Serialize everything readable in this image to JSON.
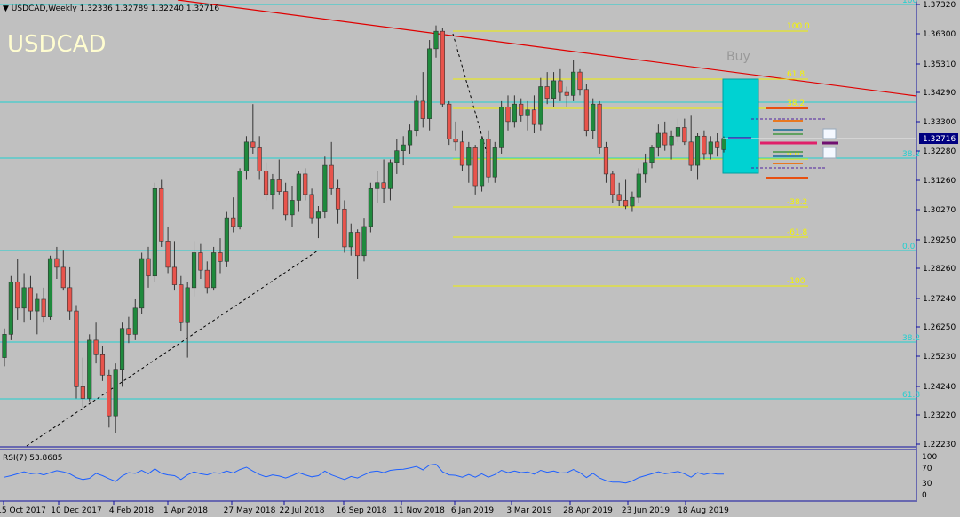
{
  "header": {
    "symbol_text": "USDCAD,Weekly",
    "ohlc_text": "1.32336 1.32789 1.32240 1.32716",
    "big_label": "USDCAD"
  },
  "colors": {
    "background": "#c0c0c0",
    "bull": "#1f8a3d",
    "bear": "#e8544c",
    "trendline": "#e00000",
    "support": "#20d0d0",
    "fib": "#f0f000",
    "fib_text": "#f4f400",
    "buy_box": "#00d2d2",
    "rsi_line": "#1e60ff",
    "axis": "#1010a0"
  },
  "annotations": {
    "buy_label": "Buy",
    "fib_labels": [
      "100.0",
      "61.8",
      "38.2",
      "0.0",
      "-38.2",
      "-61.8",
      "-100"
    ],
    "cyan_labels": [
      "100",
      "38.2",
      "0.0",
      "38.2",
      "61.8"
    ]
  },
  "rsi": {
    "label": "RSI(7) 53.8685",
    "levels": [
      "100",
      "70",
      "30",
      "0"
    ]
  },
  "chart_data": {
    "type": "candlestick",
    "title": "USDCAD,Weekly",
    "timeframe": "Weekly",
    "current_price": "1.32716",
    "y_ticks": [
      "1.37320",
      "1.36300",
      "1.35310",
      "1.34290",
      "1.33300",
      "1.32280",
      "1.31260",
      "1.30270",
      "1.29250",
      "1.28260",
      "1.27240",
      "1.26250",
      "1.25230",
      "1.24240",
      "1.23220",
      "1.22230"
    ],
    "x_ticks": [
      "15 Oct 2017",
      "10 Dec 2017",
      "4 Feb 2018",
      "1 Apr 2018",
      "27 May 2018",
      "22 Jul 2018",
      "16 Sep 2018",
      "11 Nov 2018",
      "6 Jan 2019",
      "3 Mar 2019",
      "28 Apr 2019",
      "23 Jun 2019",
      "18 Aug 2019"
    ],
    "ylim": [
      1.2223,
      1.3732
    ],
    "candles": [
      [
        1.252,
        1.262,
        1.249,
        1.26
      ],
      [
        1.26,
        1.28,
        1.258,
        1.278
      ],
      [
        1.278,
        1.286,
        1.265,
        1.269
      ],
      [
        1.269,
        1.281,
        1.264,
        1.276
      ],
      [
        1.276,
        1.28,
        1.265,
        1.268
      ],
      [
        1.268,
        1.274,
        1.26,
        1.272
      ],
      [
        1.272,
        1.276,
        1.264,
        1.266
      ],
      [
        1.266,
        1.287,
        1.265,
        1.286
      ],
      [
        1.286,
        1.29,
        1.279,
        1.283
      ],
      [
        1.283,
        1.289,
        1.275,
        1.276
      ],
      [
        1.276,
        1.283,
        1.265,
        1.268
      ],
      [
        1.268,
        1.27,
        1.238,
        1.242
      ],
      [
        1.242,
        1.252,
        1.235,
        1.238
      ],
      [
        1.238,
        1.26,
        1.237,
        1.258
      ],
      [
        1.258,
        1.264,
        1.25,
        1.253
      ],
      [
        1.253,
        1.256,
        1.244,
        1.246
      ],
      [
        1.246,
        1.248,
        1.228,
        1.232
      ],
      [
        1.232,
        1.25,
        1.226,
        1.248
      ],
      [
        1.248,
        1.264,
        1.242,
        1.262
      ],
      [
        1.262,
        1.266,
        1.257,
        1.26
      ],
      [
        1.26,
        1.272,
        1.258,
        1.269
      ],
      [
        1.269,
        1.288,
        1.267,
        1.286
      ],
      [
        1.286,
        1.29,
        1.276,
        1.28
      ],
      [
        1.28,
        1.312,
        1.278,
        1.31
      ],
      [
        1.31,
        1.313,
        1.29,
        1.292
      ],
      [
        1.292,
        1.297,
        1.281,
        1.283
      ],
      [
        1.283,
        1.292,
        1.275,
        1.277
      ],
      [
        1.277,
        1.28,
        1.261,
        1.264
      ],
      [
        1.264,
        1.278,
        1.252,
        1.276
      ],
      [
        1.276,
        1.292,
        1.273,
        1.288
      ],
      [
        1.288,
        1.291,
        1.279,
        1.282
      ],
      [
        1.282,
        1.285,
        1.274,
        1.276
      ],
      [
        1.276,
        1.29,
        1.275,
        1.288
      ],
      [
        1.288,
        1.293,
        1.281,
        1.285
      ],
      [
        1.285,
        1.302,
        1.283,
        1.3
      ],
      [
        1.3,
        1.307,
        1.295,
        1.297
      ],
      [
        1.297,
        1.317,
        1.296,
        1.316
      ],
      [
        1.316,
        1.328,
        1.313,
        1.326
      ],
      [
        1.326,
        1.339,
        1.322,
        1.324
      ],
      [
        1.324,
        1.328,
        1.313,
        1.316
      ],
      [
        1.316,
        1.319,
        1.306,
        1.308
      ],
      [
        1.308,
        1.315,
        1.303,
        1.313
      ],
      [
        1.313,
        1.32,
        1.308,
        1.309
      ],
      [
        1.309,
        1.312,
        1.299,
        1.301
      ],
      [
        1.301,
        1.311,
        1.297,
        1.306
      ],
      [
        1.306,
        1.316,
        1.302,
        1.315
      ],
      [
        1.315,
        1.317,
        1.306,
        1.308
      ],
      [
        1.308,
        1.31,
        1.298,
        1.3
      ],
      [
        1.3,
        1.304,
        1.293,
        1.302
      ],
      [
        1.302,
        1.321,
        1.3,
        1.318
      ],
      [
        1.318,
        1.326,
        1.308,
        1.31
      ],
      [
        1.31,
        1.313,
        1.298,
        1.303
      ],
      [
        1.303,
        1.306,
        1.288,
        1.29
      ],
      [
        1.29,
        1.298,
        1.287,
        1.295
      ],
      [
        1.295,
        1.296,
        1.279,
        1.287
      ],
      [
        1.287,
        1.3,
        1.285,
        1.297
      ],
      [
        1.297,
        1.312,
        1.295,
        1.31
      ],
      [
        1.31,
        1.316,
        1.305,
        1.312
      ],
      [
        1.312,
        1.32,
        1.305,
        1.31
      ],
      [
        1.31,
        1.32,
        1.306,
        1.319
      ],
      [
        1.319,
        1.327,
        1.315,
        1.323
      ],
      [
        1.323,
        1.328,
        1.318,
        1.325
      ],
      [
        1.325,
        1.332,
        1.322,
        1.33
      ],
      [
        1.33,
        1.342,
        1.328,
        1.34
      ],
      [
        1.34,
        1.35,
        1.331,
        1.334
      ],
      [
        1.334,
        1.361,
        1.33,
        1.358
      ],
      [
        1.358,
        1.366,
        1.355,
        1.364
      ],
      [
        1.364,
        1.365,
        1.338,
        1.339
      ],
      [
        1.339,
        1.34,
        1.325,
        1.327
      ],
      [
        1.327,
        1.333,
        1.323,
        1.326
      ],
      [
        1.326,
        1.33,
        1.316,
        1.318
      ],
      [
        1.318,
        1.326,
        1.312,
        1.324
      ],
      [
        1.324,
        1.325,
        1.308,
        1.311
      ],
      [
        1.311,
        1.328,
        1.309,
        1.327
      ],
      [
        1.327,
        1.33,
        1.312,
        1.314
      ],
      [
        1.314,
        1.326,
        1.312,
        1.324
      ],
      [
        1.324,
        1.34,
        1.322,
        1.338
      ],
      [
        1.338,
        1.342,
        1.33,
        1.333
      ],
      [
        1.333,
        1.342,
        1.331,
        1.339
      ],
      [
        1.339,
        1.341,
        1.333,
        1.335
      ],
      [
        1.335,
        1.34,
        1.33,
        1.337
      ],
      [
        1.337,
        1.342,
        1.329,
        1.332
      ],
      [
        1.332,
        1.348,
        1.33,
        1.345
      ],
      [
        1.345,
        1.35,
        1.339,
        1.341
      ],
      [
        1.341,
        1.35,
        1.338,
        1.347
      ],
      [
        1.347,
        1.351,
        1.34,
        1.343
      ],
      [
        1.343,
        1.345,
        1.338,
        1.342
      ],
      [
        1.342,
        1.354,
        1.34,
        1.35
      ],
      [
        1.35,
        1.351,
        1.342,
        1.344
      ],
      [
        1.344,
        1.346,
        1.328,
        1.33
      ],
      [
        1.33,
        1.341,
        1.327,
        1.339
      ],
      [
        1.339,
        1.34,
        1.322,
        1.324
      ],
      [
        1.324,
        1.326,
        1.312,
        1.315
      ],
      [
        1.315,
        1.316,
        1.305,
        1.308
      ],
      [
        1.308,
        1.312,
        1.304,
        1.306
      ],
      [
        1.306,
        1.313,
        1.303,
        1.304
      ],
      [
        1.304,
        1.309,
        1.302,
        1.307
      ],
      [
        1.307,
        1.317,
        1.305,
        1.315
      ],
      [
        1.315,
        1.322,
        1.312,
        1.319
      ],
      [
        1.319,
        1.325,
        1.317,
        1.324
      ],
      [
        1.324,
        1.332,
        1.321,
        1.329
      ],
      [
        1.329,
        1.333,
        1.323,
        1.325
      ],
      [
        1.325,
        1.33,
        1.32,
        1.328
      ],
      [
        1.328,
        1.334,
        1.326,
        1.331
      ],
      [
        1.331,
        1.334,
        1.325,
        1.326
      ],
      [
        1.326,
        1.335,
        1.316,
        1.318
      ],
      [
        1.318,
        1.329,
        1.313,
        1.328
      ],
      [
        1.328,
        1.33,
        1.32,
        1.322
      ],
      [
        1.322,
        1.328,
        1.32,
        1.326
      ],
      [
        1.326,
        1.329,
        1.321,
        1.324
      ],
      [
        1.3234,
        1.3279,
        1.3224,
        1.3272
      ]
    ],
    "rsi_values": [
      46,
      50,
      55,
      60,
      55,
      57,
      52,
      58,
      63,
      60,
      55,
      45,
      40,
      43,
      56,
      50,
      42,
      35,
      49,
      58,
      56,
      64,
      55,
      68,
      56,
      52,
      50,
      40,
      52,
      60,
      55,
      52,
      58,
      56,
      62,
      57,
      66,
      72,
      62,
      53,
      47,
      52,
      49,
      44,
      50,
      58,
      52,
      47,
      50,
      62,
      52,
      46,
      40,
      48,
      44,
      52,
      60,
      62,
      58,
      64,
      66,
      67,
      70,
      74,
      65,
      78,
      80,
      60,
      52,
      51,
      46,
      53,
      46,
      55,
      46,
      53,
      64,
      58,
      62,
      58,
      60,
      54,
      64,
      59,
      62,
      57,
      58,
      66,
      58,
      45,
      56,
      44,
      37,
      33,
      33,
      31,
      36,
      45,
      50,
      55,
      60,
      55,
      58,
      61,
      55,
      46,
      58,
      53,
      57,
      54,
      54
    ]
  }
}
